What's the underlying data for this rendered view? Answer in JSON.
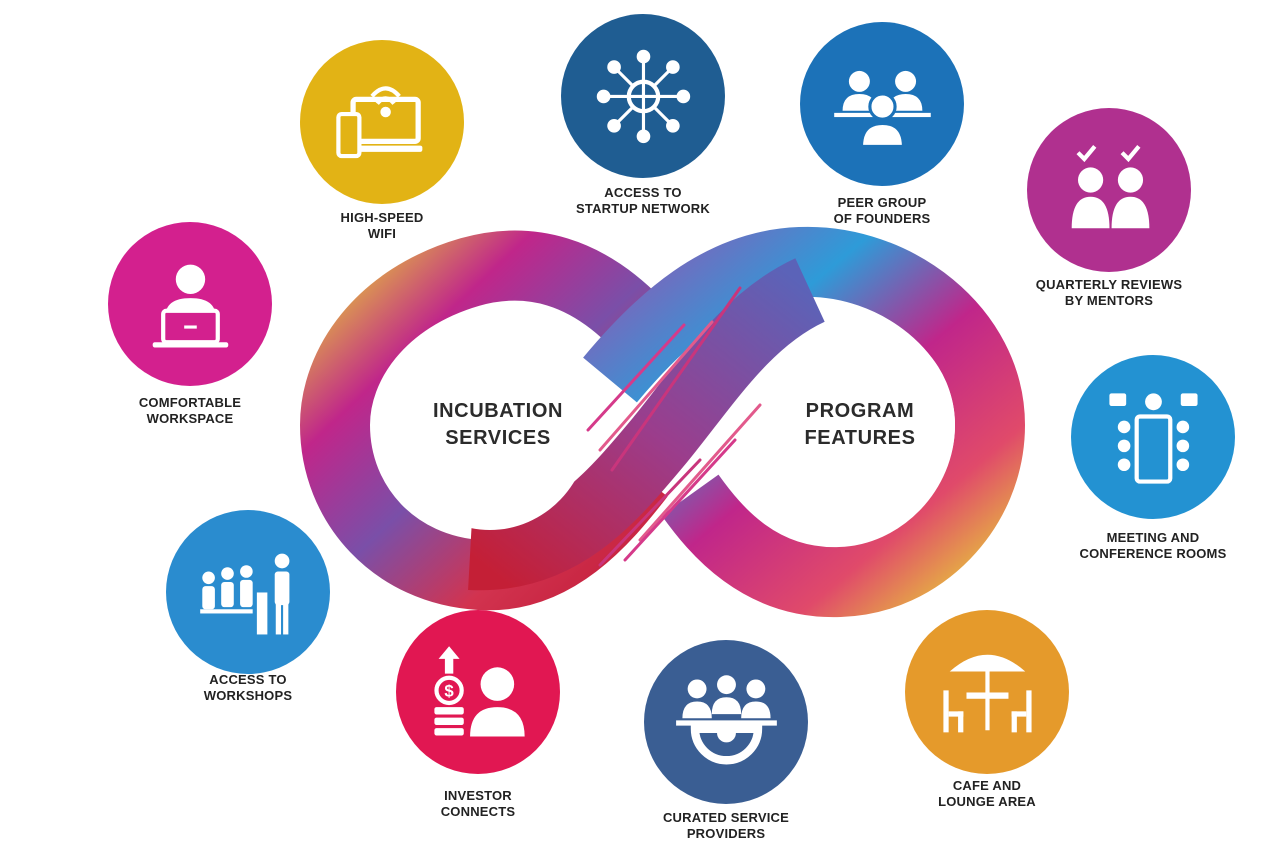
{
  "center": {
    "left": [
      "INCUBATION",
      "SERVICES"
    ],
    "right": [
      "PROGRAM",
      "FEATURES"
    ]
  },
  "features": [
    {
      "id": "wifi",
      "color": "#e2b315",
      "icon": "laptop-wifi-icon",
      "lines": [
        "HIGH-SPEED",
        "WIFI"
      ]
    },
    {
      "id": "network",
      "color": "#1f5d92",
      "icon": "globe-network-icon",
      "lines": [
        "ACCESS TO",
        "STARTUP NETWORK"
      ]
    },
    {
      "id": "peers",
      "color": "#1c72b8",
      "icon": "peer-group-icon",
      "lines": [
        "PEER GROUP",
        "OF FOUNDERS"
      ]
    },
    {
      "id": "reviews",
      "color": "#b0308f",
      "icon": "mentor-review-icon",
      "lines": [
        "QUARTERLY REVIEWS",
        "BY MENTORS"
      ]
    },
    {
      "id": "workspace",
      "color": "#d3208e",
      "icon": "person-laptop-icon",
      "lines": [
        "COMFORTABLE",
        "WORKSPACE"
      ]
    },
    {
      "id": "meeting",
      "color": "#2392d2",
      "icon": "conference-table-icon",
      "lines": [
        "MEETING AND",
        "CONFERENCE ROOMS"
      ]
    },
    {
      "id": "workshops",
      "color": "#2a8ccf",
      "icon": "workshop-audience-icon",
      "lines": [
        "ACCESS TO",
        "WORKSHOPS"
      ]
    },
    {
      "id": "investor",
      "color": "#e11752",
      "icon": "investor-money-icon",
      "lines": [
        "INVESTOR",
        "CONNECTS"
      ]
    },
    {
      "id": "providers",
      "color": "#3a5e93",
      "icon": "service-gear-icon",
      "lines": [
        "CURATED SERVICE",
        "PROVIDERS"
      ]
    },
    {
      "id": "cafe",
      "color": "#e59a2b",
      "icon": "cafe-table-icon",
      "lines": [
        "CAFE AND",
        "LOUNGE AREA"
      ]
    }
  ]
}
